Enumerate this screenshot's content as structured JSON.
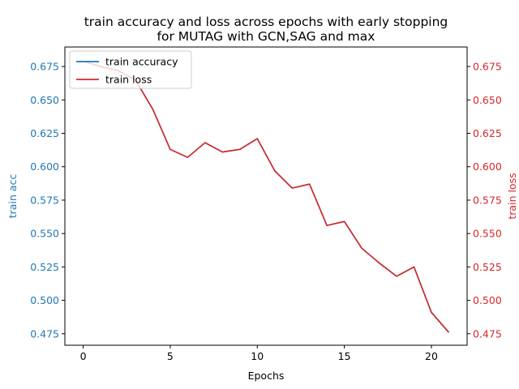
{
  "chart_data": {
    "type": "line",
    "title": "train accuracy and loss across epochs with early stopping",
    "subtitle": "for MUTAG with GCN,SAG and max",
    "xlabel": "Epochs",
    "ylabel_left": "train acc",
    "ylabel_right": "train loss",
    "xlim": [
      -1.05,
      22.05
    ],
    "ylim": [
      0.4664,
      0.6896
    ],
    "x_ticks": [
      0,
      5,
      10,
      15,
      20
    ],
    "y_ticks": [
      0.475,
      0.5,
      0.525,
      0.55,
      0.575,
      0.6,
      0.625,
      0.65,
      0.675
    ],
    "y_tick_labels": [
      "0.475",
      "0.500",
      "0.525",
      "0.550",
      "0.575",
      "0.600",
      "0.625",
      "0.650",
      "0.675"
    ],
    "legend_position": "top-left",
    "colors": {
      "left_axis": "#1f77b4",
      "right_axis": "#d62728",
      "accuracy_line": "#1f77b4",
      "loss_line": "#d62728"
    },
    "x": [
      0,
      1,
      2,
      3,
      4,
      5,
      6,
      7,
      8,
      9,
      10,
      11,
      12,
      13,
      14,
      15,
      16,
      17,
      18,
      19,
      20,
      21
    ],
    "series": [
      {
        "name": "train accuracy",
        "axis": "left",
        "values": [
          0.679,
          0.675,
          0.672,
          0.665,
          0.643,
          0.613,
          0.607,
          0.618,
          0.611,
          0.613,
          0.621,
          0.597,
          0.584,
          0.587,
          0.556,
          0.559,
          0.539,
          0.528,
          0.518,
          0.525,
          0.491,
          0.476
        ]
      },
      {
        "name": "train loss",
        "axis": "right",
        "values": [
          0.679,
          0.675,
          0.672,
          0.665,
          0.643,
          0.613,
          0.607,
          0.618,
          0.611,
          0.613,
          0.621,
          0.597,
          0.584,
          0.587,
          0.556,
          0.559,
          0.539,
          0.528,
          0.518,
          0.525,
          0.491,
          0.476
        ]
      }
    ]
  }
}
